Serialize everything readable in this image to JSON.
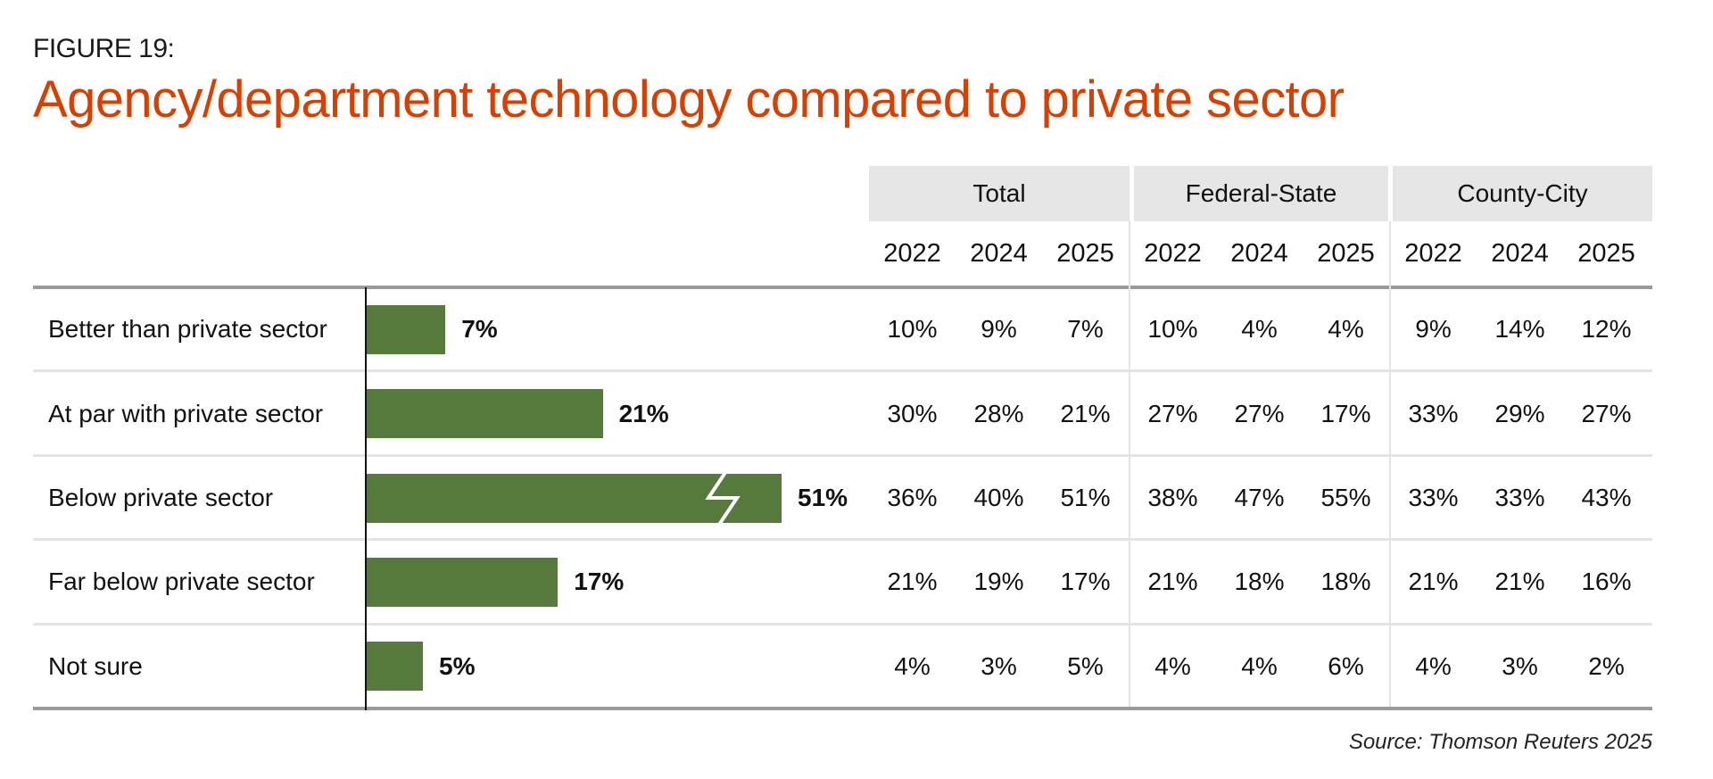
{
  "figure_label": "FIGURE 19:",
  "title": "Agency/department technology compared to private sector",
  "source": "Source: Thomson Reuters 2025",
  "colors": {
    "title": "#D64000",
    "bar": "#557A3B",
    "header_bg": "#E6E6E6"
  },
  "groups": [
    "Total",
    "Federal-State",
    "County-City"
  ],
  "years": [
    "2022",
    "2024",
    "2025"
  ],
  "chart_data": {
    "type": "bar",
    "orientation": "horizontal",
    "title": "Agency/department technology compared to private sector",
    "categories": [
      "Better than private sector",
      "At par with private sector",
      "Below private sector",
      "Far below private sector",
      "Not sure"
    ],
    "values": [
      7,
      21,
      51,
      17,
      5
    ],
    "value_labels": [
      "7%",
      "21%",
      "51%",
      "17%",
      "5%"
    ],
    "unit": "%",
    "axis_break_on": "Below private sector",
    "xlabel": "",
    "ylabel": "",
    "grid": false
  },
  "table": {
    "columns": [
      "Total 2022",
      "Total 2024",
      "Total 2025",
      "Federal-State 2022",
      "Federal-State 2024",
      "Federal-State 2025",
      "County-City 2022",
      "County-City 2024",
      "County-City 2025"
    ],
    "rows": [
      {
        "label": "Better than private sector",
        "values": [
          "10%",
          "9%",
          "7%",
          "10%",
          "4%",
          "4%",
          "9%",
          "14%",
          "12%"
        ]
      },
      {
        "label": "At par with private sector",
        "values": [
          "30%",
          "28%",
          "21%",
          "27%",
          "27%",
          "17%",
          "33%",
          "29%",
          "27%"
        ]
      },
      {
        "label": "Below private sector",
        "values": [
          "36%",
          "40%",
          "51%",
          "38%",
          "47%",
          "55%",
          "33%",
          "33%",
          "43%"
        ]
      },
      {
        "label": "Far below private sector",
        "values": [
          "21%",
          "19%",
          "17%",
          "21%",
          "18%",
          "18%",
          "21%",
          "21%",
          "16%"
        ]
      },
      {
        "label": "Not sure",
        "values": [
          "4%",
          "3%",
          "5%",
          "4%",
          "4%",
          "6%",
          "4%",
          "3%",
          "2%"
        ]
      }
    ]
  }
}
